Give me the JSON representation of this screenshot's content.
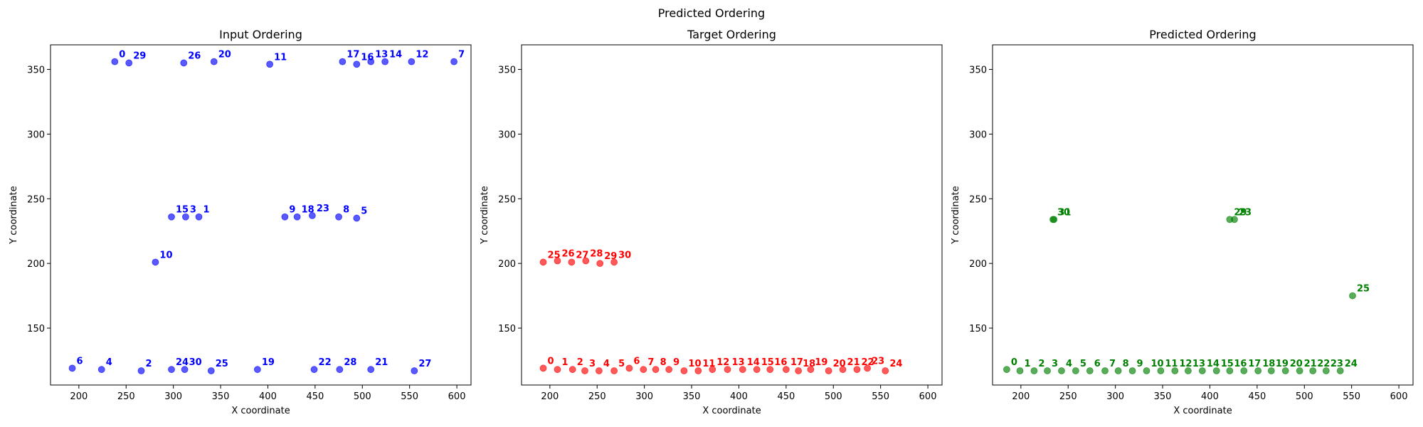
{
  "figure_title": "Predicted Ordering",
  "chart_data": [
    {
      "type": "scatter",
      "title": "Input Ordering",
      "xlabel": "X coordinate",
      "ylabel": "Y coordinate",
      "xlim": [
        170,
        615
      ],
      "ylim": [
        106,
        369
      ],
      "xticks": [
        200,
        250,
        300,
        350,
        400,
        450,
        500,
        550,
        600
      ],
      "yticks": [
        150,
        200,
        250,
        300,
        350
      ],
      "color": "#0000ff",
      "points": [
        {
          "label": "0",
          "x": 238,
          "y": 356
        },
        {
          "label": "29",
          "x": 253,
          "y": 355
        },
        {
          "label": "26",
          "x": 311,
          "y": 355
        },
        {
          "label": "20",
          "x": 343,
          "y": 356
        },
        {
          "label": "11",
          "x": 402,
          "y": 354
        },
        {
          "label": "17",
          "x": 479,
          "y": 356
        },
        {
          "label": "16",
          "x": 494,
          "y": 354
        },
        {
          "label": "13",
          "x": 509,
          "y": 356
        },
        {
          "label": "14",
          "x": 524,
          "y": 356
        },
        {
          "label": "12",
          "x": 552,
          "y": 356
        },
        {
          "label": "7",
          "x": 597,
          "y": 356
        },
        {
          "label": "15",
          "x": 298,
          "y": 236
        },
        {
          "label": "3",
          "x": 313,
          "y": 236
        },
        {
          "label": "1",
          "x": 327,
          "y": 236
        },
        {
          "label": "9",
          "x": 418,
          "y": 236
        },
        {
          "label": "18",
          "x": 431,
          "y": 236
        },
        {
          "label": "23",
          "x": 447,
          "y": 237
        },
        {
          "label": "8",
          "x": 475,
          "y": 236
        },
        {
          "label": "5",
          "x": 494,
          "y": 235
        },
        {
          "label": "10",
          "x": 281,
          "y": 201
        },
        {
          "label": "6",
          "x": 193,
          "y": 119
        },
        {
          "label": "4",
          "x": 224,
          "y": 118
        },
        {
          "label": "2",
          "x": 266,
          "y": 117
        },
        {
          "label": "24",
          "x": 298,
          "y": 118
        },
        {
          "label": "30",
          "x": 312,
          "y": 118
        },
        {
          "label": "25",
          "x": 340,
          "y": 117
        },
        {
          "label": "19",
          "x": 389,
          "y": 118
        },
        {
          "label": "22",
          "x": 449,
          "y": 118
        },
        {
          "label": "28",
          "x": 476,
          "y": 118
        },
        {
          "label": "21",
          "x": 509,
          "y": 118
        },
        {
          "label": "27",
          "x": 555,
          "y": 117
        }
      ]
    },
    {
      "type": "scatter",
      "title": "Target Ordering",
      "xlabel": "X coordinate",
      "ylabel": "Y coordinate",
      "xlim": [
        170,
        615
      ],
      "ylim": [
        106,
        369
      ],
      "xticks": [
        200,
        250,
        300,
        350,
        400,
        450,
        500,
        550,
        600
      ],
      "yticks": [
        150,
        200,
        250,
        300,
        350
      ],
      "color": "#ff0000",
      "points": [
        {
          "label": "0",
          "x": 193,
          "y": 119
        },
        {
          "label": "1",
          "x": 208,
          "y": 118
        },
        {
          "label": "2",
          "x": 224,
          "y": 118
        },
        {
          "label": "3",
          "x": 237,
          "y": 117
        },
        {
          "label": "4",
          "x": 252,
          "y": 117
        },
        {
          "label": "5",
          "x": 268,
          "y": 117
        },
        {
          "label": "6",
          "x": 284,
          "y": 119
        },
        {
          "label": "7",
          "x": 299,
          "y": 118
        },
        {
          "label": "8",
          "x": 312,
          "y": 118
        },
        {
          "label": "9",
          "x": 326,
          "y": 118
        },
        {
          "label": "10",
          "x": 342,
          "y": 117
        },
        {
          "label": "11",
          "x": 357,
          "y": 117
        },
        {
          "label": "12",
          "x": 372,
          "y": 118
        },
        {
          "label": "13",
          "x": 388,
          "y": 118
        },
        {
          "label": "14",
          "x": 404,
          "y": 118
        },
        {
          "label": "15",
          "x": 419,
          "y": 118
        },
        {
          "label": "16",
          "x": 433,
          "y": 118
        },
        {
          "label": "17",
          "x": 450,
          "y": 118
        },
        {
          "label": "18",
          "x": 463,
          "y": 117
        },
        {
          "label": "19",
          "x": 476,
          "y": 118
        },
        {
          "label": "20",
          "x": 495,
          "y": 117
        },
        {
          "label": "21",
          "x": 510,
          "y": 118
        },
        {
          "label": "22",
          "x": 525,
          "y": 118
        },
        {
          "label": "23",
          "x": 536,
          "y": 119
        },
        {
          "label": "24",
          "x": 555,
          "y": 117
        },
        {
          "label": "25",
          "x": 193,
          "y": 201
        },
        {
          "label": "26",
          "x": 208,
          "y": 202
        },
        {
          "label": "27",
          "x": 223,
          "y": 201
        },
        {
          "label": "28",
          "x": 238,
          "y": 202
        },
        {
          "label": "29",
          "x": 253,
          "y": 200
        },
        {
          "label": "30",
          "x": 268,
          "y": 201
        }
      ]
    },
    {
      "type": "scatter",
      "title": "Predicted Ordering",
      "xlabel": "X coordinate",
      "ylabel": "Y coordinate",
      "xlim": [
        170,
        615
      ],
      "ylim": [
        106,
        369
      ],
      "xticks": [
        200,
        250,
        300,
        350,
        400,
        450,
        500,
        550,
        600
      ],
      "yticks": [
        150,
        200,
        250,
        300,
        350
      ],
      "color": "#008000",
      "points": [
        {
          "label": "0",
          "x": 185,
          "y": 118
        },
        {
          "label": "1",
          "x": 199,
          "y": 117
        },
        {
          "label": "2",
          "x": 214,
          "y": 117
        },
        {
          "label": "3",
          "x": 228,
          "y": 117
        },
        {
          "label": "4",
          "x": 243,
          "y": 117
        },
        {
          "label": "5",
          "x": 258,
          "y": 117
        },
        {
          "label": "6",
          "x": 273,
          "y": 117
        },
        {
          "label": "7",
          "x": 289,
          "y": 117
        },
        {
          "label": "8",
          "x": 303,
          "y": 117
        },
        {
          "label": "9",
          "x": 318,
          "y": 117
        },
        {
          "label": "10",
          "x": 333,
          "y": 117
        },
        {
          "label": "11",
          "x": 348,
          "y": 117
        },
        {
          "label": "12",
          "x": 363,
          "y": 117
        },
        {
          "label": "13",
          "x": 377,
          "y": 117
        },
        {
          "label": "14",
          "x": 392,
          "y": 117
        },
        {
          "label": "15",
          "x": 407,
          "y": 117
        },
        {
          "label": "16",
          "x": 421,
          "y": 117
        },
        {
          "label": "17",
          "x": 436,
          "y": 117
        },
        {
          "label": "18",
          "x": 451,
          "y": 117
        },
        {
          "label": "19",
          "x": 465,
          "y": 117
        },
        {
          "label": "20",
          "x": 480,
          "y": 117
        },
        {
          "label": "21",
          "x": 495,
          "y": 117
        },
        {
          "label": "22",
          "x": 509,
          "y": 117
        },
        {
          "label": "23",
          "x": 523,
          "y": 117
        },
        {
          "label": "24",
          "x": 538,
          "y": 117
        },
        {
          "label": "25",
          "x": 551,
          "y": 175
        },
        {
          "label": "30",
          "x": 234,
          "y": 234
        },
        {
          "label": "31",
          "x": 235,
          "y": 234
        },
        {
          "label": "29",
          "x": 421,
          "y": 234
        },
        {
          "label": "23",
          "x": 426,
          "y": 234
        }
      ]
    }
  ]
}
